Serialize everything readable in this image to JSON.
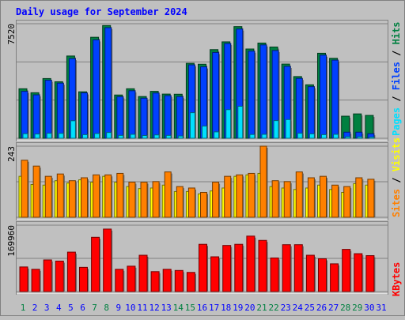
{
  "title": "Daily usage for September 2024",
  "colors": {
    "background": "#c0c0c0",
    "title": "#0000ff",
    "hits": "#008040",
    "files": "#0040ff",
    "pages": "#00e0ff",
    "visits": "#ffff00",
    "sites": "#ff8000",
    "kbytes": "#ff0000",
    "weekend_day": "#008040",
    "weekday_day": "#0000ff"
  },
  "chart_data": [
    {
      "type": "bar",
      "panel": "hits-files-pages",
      "x": [
        1,
        2,
        3,
        4,
        5,
        6,
        7,
        8,
        9,
        10,
        11,
        12,
        13,
        14,
        15,
        16,
        17,
        18,
        19,
        20,
        21,
        22,
        23,
        24,
        25,
        26,
        27,
        28,
        29,
        30
      ],
      "y_tick_label": "7520",
      "ylim": [
        0,
        7520
      ],
      "series": [
        {
          "name": "Hits",
          "values": [
            3250,
            2990,
            3920,
            3710,
            5400,
            3050,
            6630,
            7400,
            2840,
            3250,
            2740,
            3080,
            2900,
            2890,
            4920,
            4860,
            5820,
            6330,
            7330,
            5860,
            6250,
            5990,
            4870,
            4050,
            3510,
            5580,
            5250,
            1450,
            1600,
            1500
          ]
        },
        {
          "name": "Files",
          "values": [
            3080,
            2850,
            3810,
            3620,
            5230,
            2980,
            6460,
            7260,
            2730,
            3120,
            2630,
            2970,
            2800,
            2740,
            4820,
            4690,
            5630,
            6220,
            7170,
            5720,
            6130,
            5760,
            4720,
            3930,
            3390,
            5460,
            5130,
            400,
            400,
            300
          ]
        },
        {
          "name": "Pages",
          "values": [
            300,
            280,
            330,
            320,
            1150,
            240,
            310,
            380,
            190,
            260,
            180,
            220,
            190,
            150,
            1680,
            800,
            420,
            1880,
            2100,
            250,
            260,
            1160,
            1230,
            330,
            290,
            240,
            260,
            100,
            100,
            80
          ]
        }
      ]
    },
    {
      "type": "bar",
      "panel": "visits-sites",
      "x": [
        1,
        2,
        3,
        4,
        5,
        6,
        7,
        8,
        9,
        10,
        11,
        12,
        13,
        14,
        15,
        16,
        17,
        18,
        19,
        20,
        21,
        22,
        23,
        24,
        25,
        26,
        27,
        28,
        29,
        30
      ],
      "y_tick_label": "243",
      "ylim": [
        0,
        243
      ],
      "series": [
        {
          "name": "Visits",
          "values": [
            140,
            112,
            110,
            125,
            117,
            128,
            120,
            140,
            120,
            105,
            98,
            100,
            110,
            88,
            88,
            80,
            90,
            100,
            140,
            145,
            150,
            105,
            100,
            95,
            100,
            110,
            95,
            85,
            115,
            110
          ]
        },
        {
          "name": "Sites",
          "values": [
            195,
            175,
            140,
            148,
            125,
            135,
            145,
            145,
            150,
            120,
            120,
            122,
            155,
            105,
            100,
            85,
            120,
            140,
            145,
            150,
            243,
            125,
            122,
            155,
            135,
            140,
            110,
            105,
            135,
            130
          ]
        }
      ]
    },
    {
      "type": "bar",
      "panel": "kbytes",
      "x": [
        1,
        2,
        3,
        4,
        5,
        6,
        7,
        8,
        9,
        10,
        11,
        12,
        13,
        14,
        15,
        16,
        17,
        18,
        19,
        20,
        21,
        22,
        23,
        24,
        25,
        26,
        27,
        28,
        29,
        30
      ],
      "y_tick_label": "169960",
      "ylim": [
        0,
        169960
      ],
      "series": [
        {
          "name": "KBytes",
          "values": [
            63000,
            57000,
            81000,
            78000,
            101000,
            62000,
            139000,
            160000,
            57000,
            65000,
            93000,
            51000,
            57000,
            54000,
            49000,
            121000,
            89000,
            118000,
            121000,
            142000,
            131000,
            86000,
            120000,
            120000,
            93000,
            84000,
            71000,
            108000,
            97000,
            92000
          ]
        }
      ]
    }
  ],
  "x_tick_labels": [
    "1",
    "2",
    "3",
    "4",
    "5",
    "6",
    "7",
    "8",
    "9",
    "10",
    "11",
    "12",
    "13",
    "14",
    "15",
    "16",
    "17",
    "18",
    "19",
    "20",
    "21",
    "22",
    "23",
    "24",
    "25",
    "26",
    "27",
    "28",
    "29",
    "30",
    "31"
  ],
  "weekend_days": [
    1,
    7,
    8,
    14,
    15,
    21,
    22,
    28,
    29
  ],
  "right_labels": {
    "top": [
      {
        "text": "Pages",
        "color": "#00e0ff"
      },
      {
        "text": " / ",
        "color": "#000000"
      },
      {
        "text": "Files",
        "color": "#0040ff"
      },
      {
        "text": " / ",
        "color": "#000000"
      },
      {
        "text": "Hits",
        "color": "#008040"
      }
    ],
    "middle": [
      {
        "text": "Sites",
        "color": "#ff8000"
      },
      {
        "text": " / ",
        "color": "#000000"
      },
      {
        "text": "Visits",
        "color": "#ffff00"
      }
    ],
    "bottom": [
      {
        "text": "KBytes",
        "color": "#ff0000"
      }
    ]
  }
}
